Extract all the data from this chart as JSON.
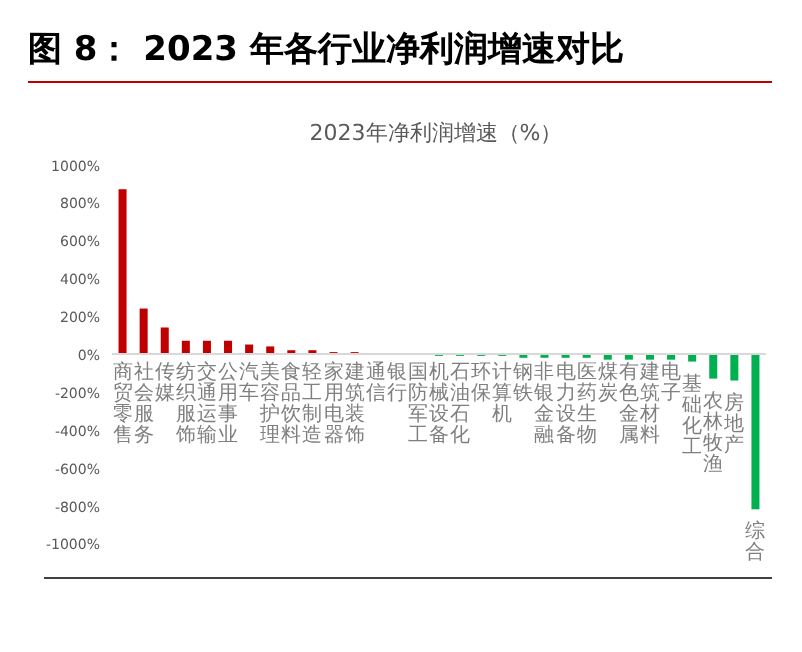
{
  "chart_data": {
    "type": "bar",
    "title": "图 8： 2023 年各行业净利润增速对比",
    "subtitle": "2023年净利润增速（%）",
    "categories": [
      "商贸零售",
      "社会服务",
      "传媒",
      "纺织服饰",
      "交通运输",
      "公用事业",
      "汽车",
      "美容护理",
      "食品饮料",
      "轻工制造",
      "家用电器",
      "建筑装饰",
      "通信",
      "银行",
      "国防军工",
      "机械设备",
      "石油石化",
      "环保",
      "计算机",
      "钢铁",
      "非银金融",
      "电力设备",
      "医药生物",
      "煤炭",
      "有色金属",
      "建筑材料",
      "电子",
      "基础化工",
      "农林牧渔",
      "房地产",
      "综合"
    ],
    "values": [
      870,
      240,
      140,
      70,
      70,
      70,
      50,
      40,
      20,
      20,
      10,
      10,
      null,
      null,
      null,
      -10,
      -10,
      -10,
      -10,
      -20,
      -20,
      -20,
      -20,
      -30,
      -30,
      -30,
      -30,
      -40,
      -130,
      -140,
      -820
    ],
    "colors": [
      "#c00000",
      "#c00000",
      "#c00000",
      "#c00000",
      "#c00000",
      "#c00000",
      "#c00000",
      "#c00000",
      "#c00000",
      "#c00000",
      "#c00000",
      "#c00000",
      "#c00000",
      "#c00000",
      "#00b050",
      "#00b050",
      "#00b050",
      "#00b050",
      "#00b050",
      "#00b050",
      "#00b050",
      "#00b050",
      "#00b050",
      "#00b050",
      "#00b050",
      "#00b050",
      "#00b050",
      "#00b050",
      "#00b050",
      "#00b050",
      "#00b050"
    ],
    "ylim": [
      -1000,
      1000
    ],
    "yticks": [
      {
        "value": 1000,
        "label": "1000%"
      },
      {
        "value": 800,
        "label": "800%"
      },
      {
        "value": 600,
        "label": "600%"
      },
      {
        "value": 400,
        "label": "400%"
      },
      {
        "value": 200,
        "label": "200%"
      },
      {
        "value": 0,
        "label": "0%"
      },
      {
        "value": -200,
        "label": "-200%"
      },
      {
        "value": -400,
        "label": "-400%"
      },
      {
        "value": -600,
        "label": "-600%"
      },
      {
        "value": -800,
        "label": "-800%"
      },
      {
        "value": -1000,
        "label": "-1000%"
      }
    ]
  }
}
